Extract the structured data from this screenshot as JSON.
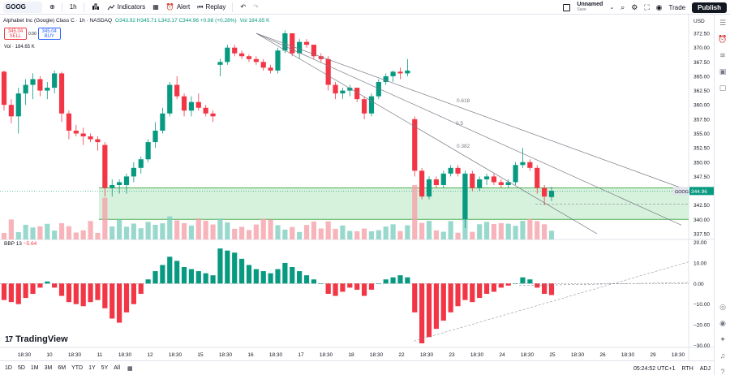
{
  "toolbar": {
    "symbol": "GOOG",
    "interval": "1h",
    "indicators_label": "Indicators",
    "alert_label": "Alert",
    "replay_label": "Replay",
    "layout_name": "Unnamed",
    "layout_status": "Save",
    "trade_label": "Trade",
    "publish_label": "Publish"
  },
  "legend": {
    "title": "Alphabet Inc (Google) Class C · 1h · NASDAQ",
    "ohlc": "O343.92 H345.71 L343.17 C344.96 +0.98 (+0.28%)",
    "vol": "Vol 184.65 K"
  },
  "trade": {
    "sell_price": "345.04",
    "sell_label": "SELL",
    "spread": "0.00",
    "buy_price": "345.04",
    "buy_label": "BUY"
  },
  "volume_label": "Vol · 184.65 K",
  "indicator": {
    "name": "BBP 13",
    "value": "−5.64"
  },
  "price_tag": {
    "symbol": "GOOG",
    "price": "344.96"
  },
  "fib_labels": [
    "0.618",
    "0.5",
    "0.382"
  ],
  "ranges": [
    "1D",
    "5D",
    "1M",
    "3M",
    "6M",
    "YTD",
    "1Y",
    "5Y",
    "All"
  ],
  "bottom_right": {
    "clock": "05:24:52 UTC+1",
    "rth": "RTH",
    "adj": "ADJ"
  },
  "branding": "TradingView",
  "colors": {
    "up": "#089981",
    "down": "#f23645",
    "zone_fill": "#c8ecd0",
    "zone_line": "#4caf50",
    "tag": "#089981"
  },
  "chart_data": [
    {
      "type": "candlestick",
      "ylim": [
        336.5,
        373.5
      ],
      "y_ticks": [
        372.5,
        370.0,
        367.5,
        365.0,
        362.5,
        360.0,
        357.5,
        355.0,
        352.5,
        350.0,
        347.5,
        345.0,
        342.5,
        340.0,
        337.5
      ],
      "y_tick_labels": [
        "372.50",
        "370.00",
        "367.50",
        "365.00",
        "362.50",
        "360.00",
        "357.50",
        "355.00",
        "352.50",
        "350.00",
        "347.50",
        "345.00",
        "342.50",
        "340.00",
        "337.50"
      ],
      "x_tick_labels": [
        "18:30",
        "10",
        "18:30",
        "11",
        "18:30",
        "12",
        "18:30",
        "15",
        "18:30",
        "16",
        "18:30",
        "17",
        "18:30",
        "18",
        "18:30",
        "22",
        "18:30",
        "23",
        "18:30",
        "24",
        "18:30",
        "25",
        "18:30",
        "26",
        "18:30",
        "29",
        "18:30"
      ],
      "candles": [
        [
          365.8,
          366.0,
          359.0,
          360.0
        ],
        [
          360.0,
          361.0,
          356.8,
          358.0
        ],
        [
          358.0,
          363.0,
          355.0,
          362.0
        ],
        [
          362.0,
          364.5,
          360.0,
          363.5
        ],
        [
          363.5,
          365.5,
          361.0,
          364.5
        ],
        [
          364.5,
          365.0,
          361.5,
          362.5
        ],
        [
          362.5,
          364.0,
          361.0,
          363.0
        ],
        [
          363.0,
          366.0,
          362.0,
          365.5
        ],
        [
          365.5,
          365.8,
          357.0,
          358.5
        ],
        [
          358.5,
          359.0,
          354.0,
          355.5
        ],
        [
          355.5,
          356.5,
          354.5,
          355.0
        ],
        [
          355.0,
          356.0,
          353.0,
          354.5
        ],
        [
          354.5,
          355.0,
          353.5,
          354.0
        ],
        [
          354.0,
          354.5,
          352.0,
          353.5
        ],
        [
          353.0,
          353.5,
          344.0,
          345.5
        ],
        [
          345.5,
          347.0,
          344.0,
          346.0
        ],
        [
          346.0,
          347.0,
          344.5,
          346.5
        ],
        [
          346.0,
          348.0,
          344.5,
          347.5
        ],
        [
          347.5,
          350.0,
          346.5,
          349.0
        ],
        [
          349.0,
          351.0,
          348.0,
          350.5
        ],
        [
          350.5,
          354.0,
          350.0,
          353.5
        ],
        [
          353.5,
          357.0,
          352.5,
          355.5
        ],
        [
          355.5,
          359.5,
          355.0,
          358.5
        ],
        [
          358.5,
          364.0,
          358.0,
          363.5
        ],
        [
          363.5,
          365.0,
          361.0,
          361.5
        ],
        [
          361.5,
          362.0,
          358.0,
          359.0
        ],
        [
          359.0,
          361.5,
          358.0,
          360.5
        ],
        [
          360.5,
          362.0,
          359.0,
          359.5
        ],
        [
          359.5,
          360.0,
          358.0,
          358.5
        ],
        [
          358.5,
          359.0,
          357.0,
          358.0
        ],
        [
          367.0,
          368.0,
          365.0,
          367.5
        ],
        [
          367.5,
          370.5,
          367.0,
          370.0
        ],
        [
          370.0,
          370.5,
          368.5,
          369.0
        ],
        [
          369.0,
          369.5,
          368.0,
          368.5
        ],
        [
          368.5,
          368.8,
          367.5,
          368.0
        ],
        [
          368.0,
          368.5,
          367.0,
          367.5
        ],
        [
          367.5,
          368.0,
          366.0,
          366.5
        ],
        [
          366.5,
          367.0,
          365.5,
          366.0
        ],
        [
          366.0,
          370.0,
          365.5,
          369.5
        ],
        [
          369.5,
          373.0,
          369.0,
          372.5
        ],
        [
          372.5,
          372.5,
          368.5,
          369.0
        ],
        [
          369.0,
          371.5,
          368.0,
          371.0
        ],
        [
          371.0,
          371.5,
          370.0,
          370.5
        ],
        [
          370.5,
          370.5,
          368.0,
          368.5
        ],
        [
          368.5,
          369.0,
          367.5,
          368.0
        ],
        [
          368.0,
          368.5,
          362.5,
          363.5
        ],
        [
          363.5,
          364.0,
          361.0,
          362.0
        ],
        [
          362.0,
          363.0,
          361.0,
          362.5
        ],
        [
          362.5,
          363.5,
          361.5,
          363.0
        ],
        [
          363.0,
          363.0,
          360.5,
          361.0
        ],
        [
          361.0,
          361.5,
          357.5,
          358.5
        ],
        [
          358.5,
          362.0,
          358.0,
          361.5
        ],
        [
          361.5,
          364.5,
          361.0,
          364.0
        ],
        [
          364.0,
          365.5,
          363.5,
          365.0
        ],
        [
          365.0,
          366.0,
          364.0,
          365.8
        ],
        [
          365.8,
          366.5,
          364.5,
          365.5
        ],
        [
          365.5,
          368.0,
          365.0,
          366.0
        ],
        [
          357.5,
          358.0,
          347.5,
          348.5
        ],
        [
          348.5,
          349.0,
          343.5,
          344.0
        ],
        [
          344.0,
          347.5,
          343.5,
          347.0
        ],
        [
          347.0,
          347.5,
          345.5,
          346.0
        ],
        [
          346.0,
          348.5,
          345.5,
          348.0
        ],
        [
          348.0,
          349.5,
          347.5,
          349.0
        ],
        [
          349.0,
          349.5,
          347.5,
          348.0
        ],
        [
          340.0,
          348.5,
          338.5,
          348.0
        ],
        [
          348.0,
          348.5,
          345.0,
          345.5
        ],
        [
          345.5,
          347.5,
          345.0,
          347.0
        ],
        [
          347.0,
          348.0,
          346.0,
          347.5
        ],
        [
          347.5,
          348.0,
          346.0,
          346.5
        ],
        [
          346.5,
          347.0,
          345.5,
          346.0
        ],
        [
          346.0,
          347.0,
          345.5,
          346.5
        ],
        [
          346.5,
          350.0,
          346.0,
          349.5
        ],
        [
          349.5,
          352.5,
          349.0,
          350.0
        ],
        [
          350.0,
          350.5,
          348.5,
          349.0
        ],
        [
          349.0,
          349.5,
          344.5,
          345.5
        ],
        [
          345.5,
          346.0,
          342.5,
          344.0
        ],
        [
          343.9,
          345.7,
          343.2,
          345.0
        ]
      ],
      "fib_fan": {
        "origin": [
          316,
          372.5
        ],
        "targets": [
          [
            840,
            345.5
          ],
          [
            840,
            339.0
          ],
          [
            736,
            337.5
          ]
        ]
      },
      "zone": {
        "top": 345.5,
        "bottom": 340.0
      },
      "current_price": 344.96
    },
    {
      "type": "bar",
      "name": "BBP 13",
      "ylim": [
        -31,
        21
      ],
      "y_tick_labels": [
        "20.00",
        "10.00",
        "0.00",
        "−10.00",
        "−20.00",
        "−30.00"
      ],
      "y_ticks": [
        20,
        10,
        0,
        -10,
        -20,
        -30
      ]
    }
  ]
}
